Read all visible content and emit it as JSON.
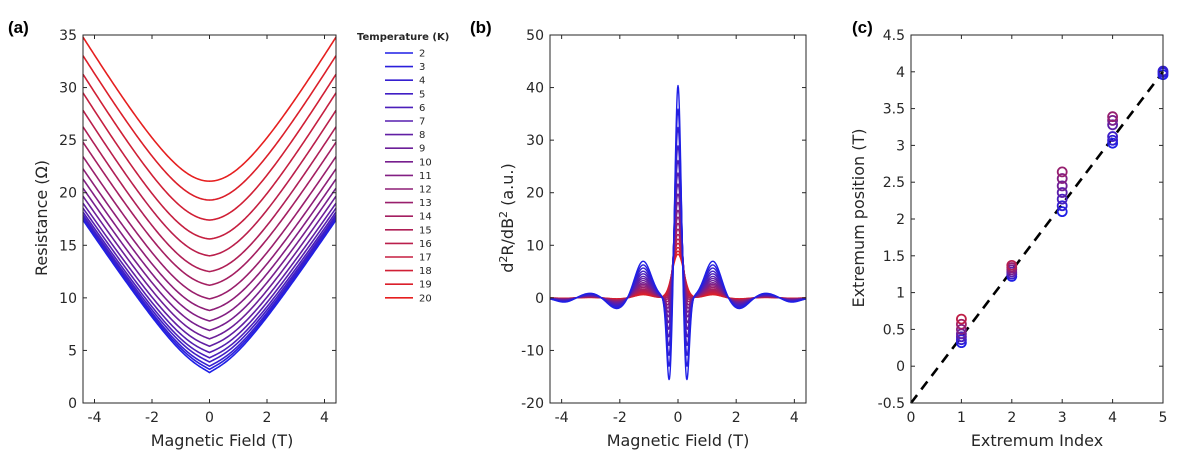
{
  "figure": {
    "panel_labels": [
      "(a)",
      "(b)",
      "(c)"
    ],
    "legend_title": "Temperature (K)",
    "temperatures": [
      "2",
      "3",
      "4",
      "5",
      "6",
      "7",
      "8",
      "9",
      "10",
      "11",
      "12",
      "13",
      "14",
      "15",
      "16",
      "17",
      "18",
      "19",
      "20"
    ],
    "color_cold": "#1f1fe6",
    "color_hot": "#e61f1f"
  },
  "chart_data": [
    {
      "type": "line",
      "title": "",
      "xlabel": "Magnetic Field (T)",
      "ylabel": "Resistance (Ω)",
      "xlim": [
        -4.4,
        4.4
      ],
      "ylim": [
        0,
        35
      ],
      "xticks": [
        -4,
        -2,
        0,
        2,
        4
      ],
      "yticks": [
        0,
        5,
        10,
        15,
        20,
        25,
        30,
        35
      ],
      "series_note": "19 magnetoresistance curves, one per temperature 2-20 K; values listed at B = 0 and B = ±4.4 T",
      "series": [
        {
          "name": "2",
          "r_at_zero": 2.9,
          "r_at_edge": 16.8
        },
        {
          "name": "3",
          "r_at_zero": 3.2,
          "r_at_edge": 17.0
        },
        {
          "name": "4",
          "r_at_zero": 3.5,
          "r_at_edge": 17.2
        },
        {
          "name": "5",
          "r_at_zero": 3.9,
          "r_at_edge": 17.4
        },
        {
          "name": "6",
          "r_at_zero": 4.3,
          "r_at_edge": 17.7
        },
        {
          "name": "7",
          "r_at_zero": 4.8,
          "r_at_edge": 18.1
        },
        {
          "name": "8",
          "r_at_zero": 5.4,
          "r_at_edge": 18.6
        },
        {
          "name": "9",
          "r_at_zero": 6.1,
          "r_at_edge": 19.3
        },
        {
          "name": "10",
          "r_at_zero": 6.9,
          "r_at_edge": 20.1
        },
        {
          "name": "11",
          "r_at_zero": 7.8,
          "r_at_edge": 21.0
        },
        {
          "name": "12",
          "r_at_zero": 8.8,
          "r_at_edge": 22.0
        },
        {
          "name": "13",
          "r_at_zero": 9.9,
          "r_at_edge": 23.2
        },
        {
          "name": "14",
          "r_at_zero": 11.2,
          "r_at_edge": 24.6
        },
        {
          "name": "15",
          "r_at_zero": 12.5,
          "r_at_edge": 26.1
        },
        {
          "name": "16",
          "r_at_zero": 14.0,
          "r_at_edge": 27.7
        },
        {
          "name": "17",
          "r_at_zero": 15.6,
          "r_at_edge": 29.4
        },
        {
          "name": "18",
          "r_at_zero": 17.4,
          "r_at_edge": 31.2
        },
        {
          "name": "19",
          "r_at_zero": 19.3,
          "r_at_edge": 33.0
        },
        {
          "name": "20",
          "r_at_zero": 21.1,
          "r_at_edge": 34.8
        }
      ]
    },
    {
      "type": "line",
      "title": "",
      "xlabel": "Magnetic Field (T)",
      "ylabel": "d²R/dB² (a.u.)",
      "ylabel_parts": [
        "d",
        "2",
        "R/dB",
        "2",
        " (a.u.)"
      ],
      "xlim": [
        -4.4,
        4.4
      ],
      "ylim": [
        -20,
        50
      ],
      "xticks": [
        -4,
        -2,
        0,
        2,
        4
      ],
      "yticks": [
        -20,
        -10,
        0,
        10,
        20,
        30,
        40,
        50
      ],
      "series_note": "second derivative curves for 2-20 K; peak at B=0, dips at B=±0.3 T, side lobes at B=±1.2 T",
      "series": [
        {
          "name": "2",
          "peak": 40.5,
          "dip": -16.0,
          "lobe": 7.0
        },
        {
          "name": "3",
          "peak": 36.0,
          "dip": -13.6,
          "lobe": 6.3
        },
        {
          "name": "4",
          "peak": 32.5,
          "dip": -11.7,
          "lobe": 5.7
        },
        {
          "name": "5",
          "peak": 29.0,
          "dip": -10.0,
          "lobe": 5.1
        },
        {
          "name": "6",
          "peak": 26.2,
          "dip": -8.5,
          "lobe": 4.6
        },
        {
          "name": "7",
          "peak": 23.8,
          "dip": -7.2,
          "lobe": 4.1
        },
        {
          "name": "8",
          "peak": 21.7,
          "dip": -6.1,
          "lobe": 3.7
        },
        {
          "name": "9",
          "peak": 19.8,
          "dip": -5.1,
          "lobe": 3.3
        },
        {
          "name": "10",
          "peak": 18.2,
          "dip": -4.3,
          "lobe": 2.9
        },
        {
          "name": "11",
          "peak": 16.7,
          "dip": -3.6,
          "lobe": 2.6
        },
        {
          "name": "12",
          "peak": 15.4,
          "dip": -3.0,
          "lobe": 2.3
        },
        {
          "name": "13",
          "peak": 14.2,
          "dip": -2.4,
          "lobe": 2.0
        },
        {
          "name": "14",
          "peak": 13.1,
          "dip": -1.9,
          "lobe": 1.7
        },
        {
          "name": "15",
          "peak": 12.1,
          "dip": -1.5,
          "lobe": 1.5
        },
        {
          "name": "16",
          "peak": 11.2,
          "dip": -1.1,
          "lobe": 1.3
        },
        {
          "name": "17",
          "peak": 10.4,
          "dip": -0.8,
          "lobe": 1.1
        },
        {
          "name": "18",
          "peak": 9.6,
          "dip": -0.5,
          "lobe": 0.9
        },
        {
          "name": "19",
          "peak": 8.9,
          "dip": -0.3,
          "lobe": 0.7
        },
        {
          "name": "20",
          "peak": 8.3,
          "dip": -0.1,
          "lobe": 0.6
        }
      ]
    },
    {
      "type": "scatter",
      "title": "",
      "xlabel": "Extremum Index",
      "ylabel": "Extremum position (T)",
      "xlim": [
        0,
        5
      ],
      "ylim": [
        -0.5,
        4.5
      ],
      "xticks": [
        0,
        1,
        2,
        3,
        4,
        5
      ],
      "yticks": [
        -0.5,
        0,
        0.5,
        1,
        1.5,
        2,
        2.5,
        3,
        3.5,
        4,
        4.5
      ],
      "fit_line": {
        "style": "dashed",
        "x": [
          0,
          5
        ],
        "y": [
          -0.5,
          4.0
        ]
      },
      "points": [
        {
          "x": 1,
          "y": 0.32,
          "t": 0.0
        },
        {
          "x": 1,
          "y": 0.36,
          "t": 0.1
        },
        {
          "x": 1,
          "y": 0.4,
          "t": 0.2
        },
        {
          "x": 1,
          "y": 0.44,
          "t": 0.35
        },
        {
          "x": 1,
          "y": 0.5,
          "t": 0.5
        },
        {
          "x": 1,
          "y": 0.57,
          "t": 0.65
        },
        {
          "x": 1,
          "y": 0.64,
          "t": 0.8
        },
        {
          "x": 2,
          "y": 1.22,
          "t": 0.0
        },
        {
          "x": 2,
          "y": 1.25,
          "t": 0.15
        },
        {
          "x": 2,
          "y": 1.28,
          "t": 0.3
        },
        {
          "x": 2,
          "y": 1.31,
          "t": 0.45
        },
        {
          "x": 2,
          "y": 1.34,
          "t": 0.6
        },
        {
          "x": 2,
          "y": 1.37,
          "t": 0.75
        },
        {
          "x": 3,
          "y": 2.1,
          "t": 0.0
        },
        {
          "x": 3,
          "y": 2.18,
          "t": 0.1
        },
        {
          "x": 3,
          "y": 2.27,
          "t": 0.2
        },
        {
          "x": 3,
          "y": 2.36,
          "t": 0.3
        },
        {
          "x": 3,
          "y": 2.45,
          "t": 0.4
        },
        {
          "x": 3,
          "y": 2.55,
          "t": 0.5
        },
        {
          "x": 3,
          "y": 2.64,
          "t": 0.6
        },
        {
          "x": 4,
          "y": 3.03,
          "t": 0.0
        },
        {
          "x": 4,
          "y": 3.07,
          "t": 0.08
        },
        {
          "x": 4,
          "y": 3.12,
          "t": 0.16
        },
        {
          "x": 4,
          "y": 3.28,
          "t": 0.3
        },
        {
          "x": 4,
          "y": 3.34,
          "t": 0.45
        },
        {
          "x": 4,
          "y": 3.39,
          "t": 0.6
        },
        {
          "x": 5,
          "y": 3.96,
          "t": 0.0
        },
        {
          "x": 5,
          "y": 3.99,
          "t": 0.05
        },
        {
          "x": 5,
          "y": 4.01,
          "t": 0.1
        }
      ]
    }
  ]
}
